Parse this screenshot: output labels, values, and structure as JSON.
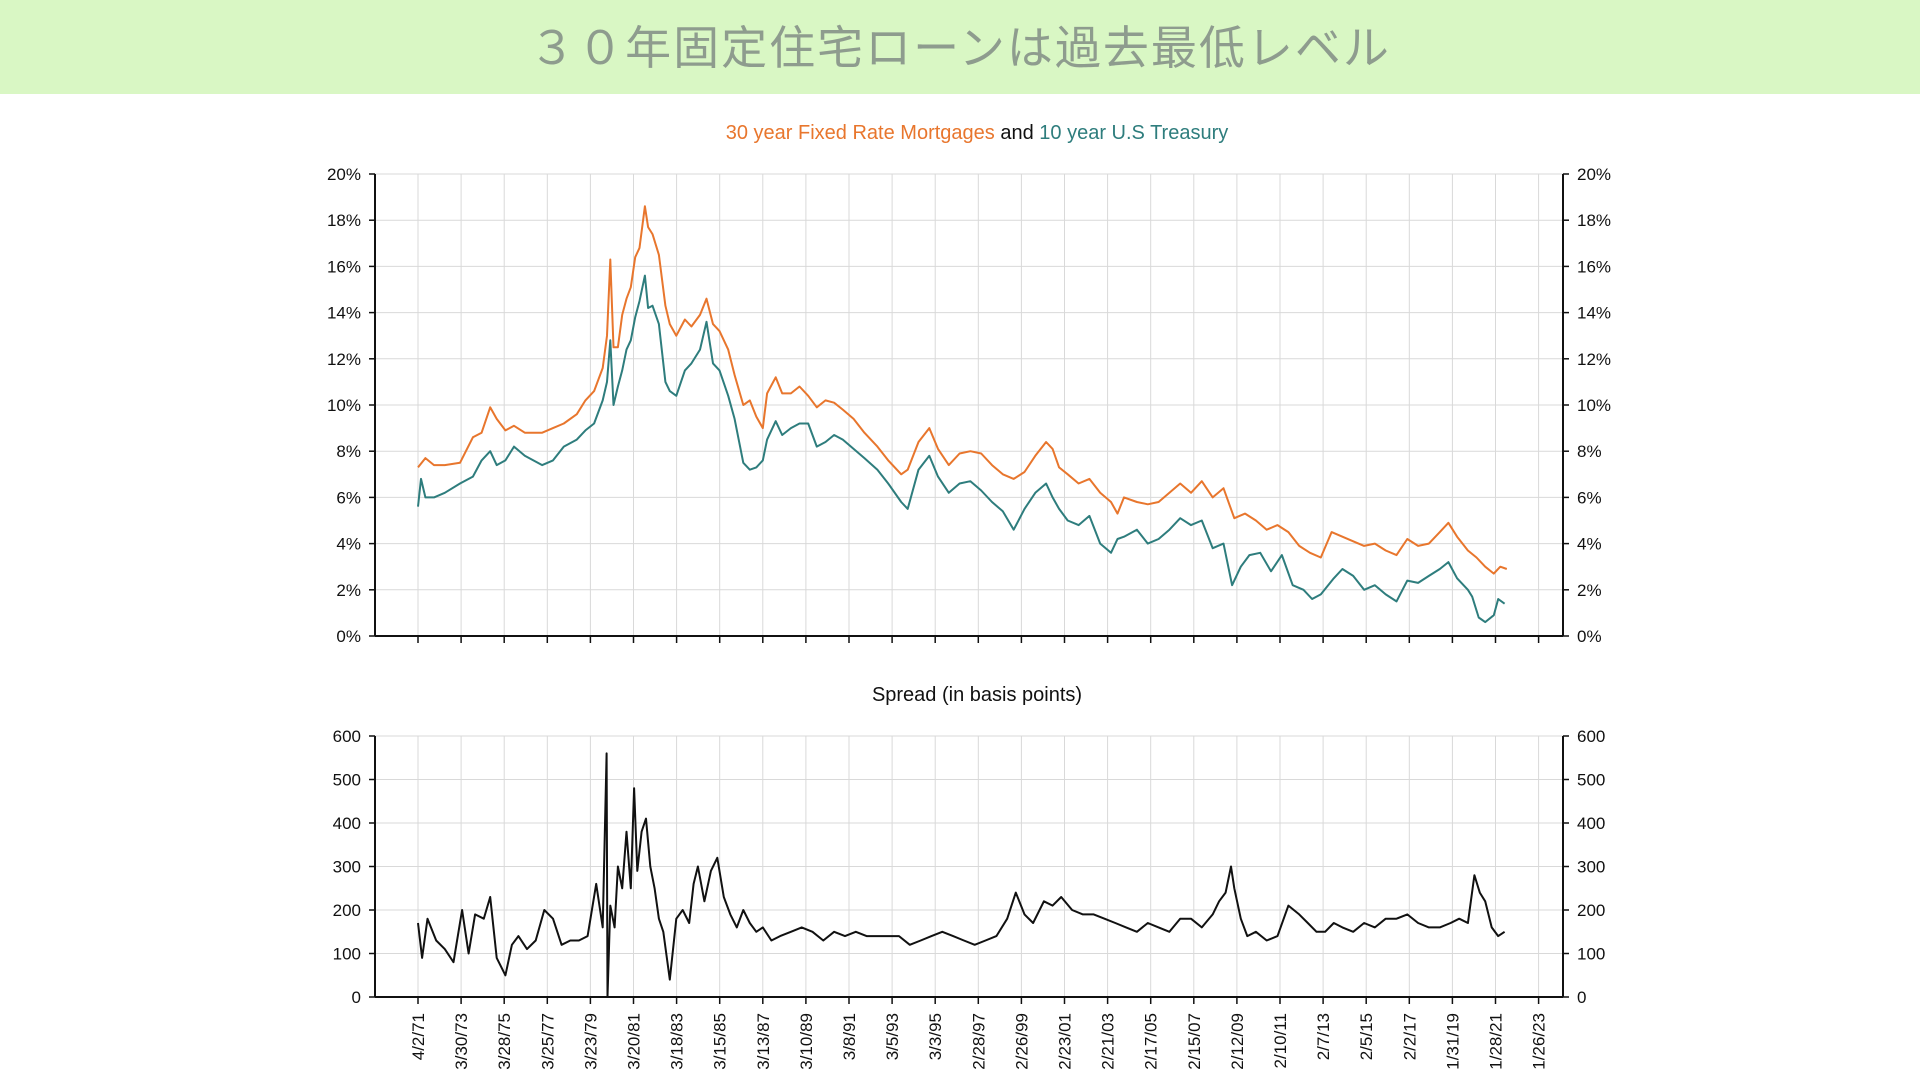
{
  "banner": {
    "title": "３０年固定住宅ローンは過去最低レベル",
    "background": "#d9f7c4"
  },
  "chart_data": [
    {
      "type": "line",
      "title_parts": [
        "30 year Fixed Rate Mortgages",
        " and ",
        "10 year U.S Treasury"
      ],
      "title_colors": [
        "#e8762d",
        "#111111",
        "#2e7d7d"
      ],
      "ylim": [
        0,
        20
      ],
      "yticks": [
        "0%",
        "2%",
        "4%",
        "6%",
        "8%",
        "10%",
        "12%",
        "14%",
        "16%",
        "18%",
        "20%"
      ],
      "grid": true,
      "x_range": [
        1971.26,
        2023.07
      ],
      "series": [
        {
          "name": "30 year Fixed Rate Mortgages",
          "color": "#e8762d",
          "x": [
            1971.26,
            1971.6,
            1972,
            1972.5,
            1973.2,
            1973.8,
            1974.2,
            1974.6,
            1974.9,
            1975.3,
            1975.7,
            1976.2,
            1977,
            1977.5,
            1978,
            1978.6,
            1979,
            1979.4,
            1979.8,
            1980.0,
            1980.15,
            1980.3,
            1980.5,
            1980.7,
            1980.9,
            1981.1,
            1981.3,
            1981.5,
            1981.75,
            1981.9,
            1982.1,
            1982.4,
            1982.7,
            1982.9,
            1983.2,
            1983.6,
            1983.9,
            1984.3,
            1984.6,
            1984.9,
            1985.2,
            1985.6,
            1985.9,
            1986.3,
            1986.6,
            1986.9,
            1987.2,
            1987.4,
            1987.8,
            1988.1,
            1988.5,
            1988.9,
            1989.3,
            1989.7,
            1990.1,
            1990.5,
            1990.9,
            1991.4,
            1991.9,
            1992.5,
            1993,
            1993.6,
            1993.9,
            1994.4,
            1994.9,
            1995.3,
            1995.8,
            1996.3,
            1996.8,
            1997.3,
            1997.8,
            1998.3,
            1998.8,
            1999.3,
            1999.8,
            2000.3,
            2000.6,
            2000.9,
            2001.3,
            2001.8,
            2002.3,
            2002.8,
            2003.3,
            2003.6,
            2003.9,
            2004.5,
            2005,
            2005.5,
            2006,
            2006.5,
            2007,
            2007.5,
            2008,
            2008.5,
            2009,
            2009.5,
            2010,
            2010.5,
            2011,
            2011.5,
            2012,
            2012.5,
            2013,
            2013.5,
            2014,
            2014.5,
            2015,
            2015.5,
            2016,
            2016.5,
            2017,
            2017.5,
            2018,
            2018.5,
            2018.9,
            2019.3,
            2019.8,
            2020.2,
            2020.6,
            2021,
            2021.3,
            2021.6
          ],
          "values": [
            7.3,
            7.7,
            7.4,
            7.4,
            7.5,
            8.6,
            8.8,
            9.9,
            9.4,
            8.9,
            9.1,
            8.8,
            8.8,
            9.0,
            9.2,
            9.6,
            10.2,
            10.6,
            11.6,
            13.0,
            16.3,
            12.5,
            12.5,
            13.9,
            14.6,
            15.1,
            16.4,
            16.8,
            18.6,
            17.7,
            17.4,
            16.5,
            14.3,
            13.5,
            13.0,
            13.7,
            13.4,
            13.9,
            14.6,
            13.5,
            13.2,
            12.4,
            11.3,
            10.0,
            10.2,
            9.5,
            9.0,
            10.5,
            11.2,
            10.5,
            10.5,
            10.8,
            10.4,
            9.9,
            10.2,
            10.1,
            9.8,
            9.4,
            8.8,
            8.2,
            7.6,
            7.0,
            7.2,
            8.4,
            9.0,
            8.1,
            7.4,
            7.9,
            8.0,
            7.9,
            7.4,
            7.0,
            6.8,
            7.1,
            7.8,
            8.4,
            8.1,
            7.3,
            7.0,
            6.6,
            6.8,
            6.2,
            5.8,
            5.3,
            6.0,
            5.8,
            5.7,
            5.8,
            6.2,
            6.6,
            6.2,
            6.7,
            6.0,
            6.4,
            5.1,
            5.3,
            5.0,
            4.6,
            4.8,
            4.5,
            3.9,
            3.6,
            3.4,
            4.5,
            4.3,
            4.1,
            3.9,
            4.0,
            3.7,
            3.5,
            4.2,
            3.9,
            4.0,
            4.5,
            4.9,
            4.3,
            3.7,
            3.4,
            3.0,
            2.7,
            3.0,
            2.9
          ]
        },
        {
          "name": "10 year U.S Treasury",
          "color": "#2e7d7d",
          "x": [
            1971.26,
            1971.4,
            1971.6,
            1972,
            1972.5,
            1973.2,
            1973.8,
            1974.2,
            1974.6,
            1974.9,
            1975.3,
            1975.7,
            1976.2,
            1977,
            1977.5,
            1978,
            1978.6,
            1979,
            1979.4,
            1979.8,
            1980.0,
            1980.15,
            1980.3,
            1980.5,
            1980.7,
            1980.9,
            1981.1,
            1981.3,
            1981.5,
            1981.75,
            1981.9,
            1982.1,
            1982.4,
            1982.7,
            1982.9,
            1983.2,
            1983.6,
            1983.9,
            1984.3,
            1984.6,
            1984.9,
            1985.2,
            1985.6,
            1985.9,
            1986.3,
            1986.6,
            1986.9,
            1987.2,
            1987.4,
            1987.8,
            1988.1,
            1988.5,
            1988.9,
            1989.3,
            1989.7,
            1990.1,
            1990.5,
            1990.9,
            1991.4,
            1991.9,
            1992.5,
            1993,
            1993.6,
            1993.9,
            1994.4,
            1994.9,
            1995.3,
            1995.8,
            1996.3,
            1996.8,
            1997.3,
            1997.8,
            1998.3,
            1998.8,
            1999.3,
            1999.8,
            2000.3,
            2000.6,
            2000.9,
            2001.3,
            2001.8,
            2002.3,
            2002.8,
            2003.3,
            2003.6,
            2003.9,
            2004.5,
            2005,
            2005.5,
            2006,
            2006.5,
            2007,
            2007.5,
            2008,
            2008.5,
            2008.9,
            2009.3,
            2009.7,
            2010.2,
            2010.7,
            2011.2,
            2011.7,
            2012.2,
            2012.6,
            2013,
            2013.6,
            2014,
            2014.5,
            2015,
            2015.5,
            2016,
            2016.5,
            2017,
            2017.5,
            2018,
            2018.5,
            2018.9,
            2019.3,
            2019.8,
            2020.0,
            2020.3,
            2020.6,
            2021,
            2021.2,
            2021.5
          ],
          "values": [
            5.6,
            6.8,
            6.0,
            6.0,
            6.2,
            6.6,
            6.9,
            7.6,
            8.0,
            7.4,
            7.6,
            8.2,
            7.8,
            7.4,
            7.6,
            8.2,
            8.5,
            8.9,
            9.2,
            10.2,
            11.0,
            12.8,
            10.0,
            10.8,
            11.5,
            12.4,
            12.8,
            13.8,
            14.5,
            15.6,
            14.2,
            14.3,
            13.5,
            11.0,
            10.6,
            10.4,
            11.5,
            11.8,
            12.4,
            13.6,
            11.8,
            11.5,
            10.4,
            9.4,
            7.5,
            7.2,
            7.3,
            7.6,
            8.5,
            9.3,
            8.7,
            9.0,
            9.2,
            9.2,
            8.2,
            8.4,
            8.7,
            8.5,
            8.1,
            7.7,
            7.2,
            6.6,
            5.8,
            5.5,
            7.2,
            7.8,
            6.9,
            6.2,
            6.6,
            6.7,
            6.3,
            5.8,
            5.4,
            4.6,
            5.5,
            6.2,
            6.6,
            6.0,
            5.5,
            5.0,
            4.8,
            5.2,
            4.0,
            3.6,
            4.2,
            4.3,
            4.6,
            4.0,
            4.2,
            4.6,
            5.1,
            4.8,
            5.0,
            3.8,
            4.0,
            2.2,
            3.0,
            3.5,
            3.6,
            2.8,
            3.5,
            2.2,
            2.0,
            1.6,
            1.8,
            2.5,
            2.9,
            2.6,
            2.0,
            2.2,
            1.8,
            1.5,
            2.4,
            2.3,
            2.6,
            2.9,
            3.2,
            2.5,
            2.0,
            1.7,
            0.8,
            0.6,
            0.9,
            1.6,
            1.4
          ]
        }
      ]
    },
    {
      "type": "line",
      "title": "Spread (in basis points)",
      "ylim": [
        0,
        600
      ],
      "yticks": [
        "0",
        "100",
        "200",
        "300",
        "400",
        "500",
        "600"
      ],
      "grid": true,
      "x_range": [
        1971.26,
        2023.07
      ],
      "xtick_labels": [
        "4/2/71",
        "3/30/73",
        "3/28/75",
        "3/25/77",
        "3/23/79",
        "3/20/81",
        "3/18/83",
        "3/15/85",
        "3/13/87",
        "3/10/89",
        "3/8/91",
        "3/5/93",
        "3/3/95",
        "2/28/97",
        "2/26/99",
        "2/23/01",
        "2/21/03",
        "2/17/05",
        "2/15/07",
        "2/12/09",
        "2/10/11",
        "2/7/13",
        "2/5/15",
        "2/2/17",
        "1/31/19",
        "1/28/21",
        "1/26/23"
      ],
      "series": [
        {
          "color": "#111111",
          "x": [
            1971.26,
            1971.45,
            1971.7,
            1972.1,
            1972.5,
            1972.9,
            1973.3,
            1973.6,
            1973.9,
            1974.3,
            1974.6,
            1974.9,
            1975.3,
            1975.6,
            1975.9,
            1976.3,
            1976.7,
            1977.1,
            1977.5,
            1977.9,
            1978.3,
            1978.7,
            1979.1,
            1979.5,
            1979.8,
            1979.98,
            1980.02,
            1980.15,
            1980.35,
            1980.5,
            1980.7,
            1980.9,
            1981.1,
            1981.25,
            1981.4,
            1981.6,
            1981.8,
            1982.0,
            1982.2,
            1982.4,
            1982.6,
            1982.9,
            1983.2,
            1983.5,
            1983.8,
            1984.0,
            1984.2,
            1984.5,
            1984.8,
            1985.1,
            1985.4,
            1985.7,
            1986.0,
            1986.3,
            1986.6,
            1986.9,
            1987.2,
            1987.6,
            1988.0,
            1988.5,
            1989.0,
            1989.5,
            1990,
            1990.5,
            1991,
            1991.5,
            1992,
            1992.5,
            1993,
            1993.5,
            1994,
            1994.5,
            1995,
            1995.5,
            1996,
            1996.5,
            1997,
            1997.5,
            1998.0,
            1998.5,
            1998.9,
            1999.3,
            1999.7,
            2000.2,
            2000.6,
            2001.0,
            2001.5,
            2002.0,
            2002.5,
            2003.0,
            2003.5,
            2004.0,
            2004.5,
            2005.0,
            2005.5,
            2006.0,
            2006.5,
            2007.0,
            2007.5,
            2008.0,
            2008.3,
            2008.6,
            2008.85,
            2009.0,
            2009.3,
            2009.6,
            2010.0,
            2010.5,
            2011.0,
            2011.5,
            2012.0,
            2012.4,
            2012.8,
            2013.2,
            2013.6,
            2014.0,
            2014.5,
            2015.0,
            2015.5,
            2016.0,
            2016.5,
            2017.0,
            2017.5,
            2018.0,
            2018.5,
            2019.0,
            2019.4,
            2019.8,
            2020.1,
            2020.35,
            2020.6,
            2020.9,
            2021.2,
            2021.5
          ],
          "values": [
            170,
            90,
            180,
            130,
            110,
            80,
            200,
            100,
            190,
            180,
            230,
            90,
            50,
            120,
            140,
            110,
            130,
            200,
            180,
            120,
            130,
            130,
            140,
            260,
            160,
            560,
            0,
            210,
            160,
            300,
            250,
            380,
            250,
            480,
            290,
            380,
            410,
            300,
            250,
            180,
            150,
            40,
            180,
            200,
            170,
            260,
            300,
            220,
            290,
            320,
            230,
            190,
            160,
            200,
            170,
            150,
            160,
            130,
            140,
            150,
            160,
            150,
            130,
            150,
            140,
            150,
            140,
            140,
            140,
            140,
            120,
            130,
            140,
            150,
            140,
            130,
            120,
            130,
            140,
            180,
            240,
            190,
            170,
            220,
            210,
            230,
            200,
            190,
            190,
            180,
            170,
            160,
            150,
            170,
            160,
            150,
            180,
            180,
            160,
            190,
            220,
            240,
            300,
            250,
            180,
            140,
            150,
            130,
            140,
            210,
            190,
            170,
            150,
            150,
            170,
            160,
            150,
            170,
            160,
            180,
            180,
            190,
            170,
            160,
            160,
            170,
            180,
            170,
            280,
            240,
            220,
            160,
            140,
            150
          ]
        }
      ]
    }
  ]
}
